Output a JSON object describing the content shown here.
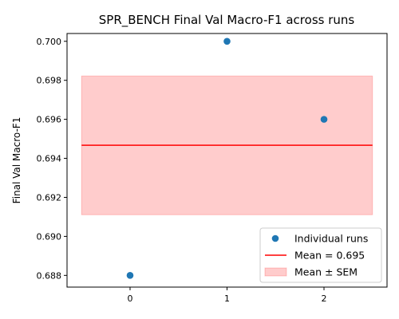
{
  "chart_data": {
    "type": "scatter",
    "title": "SPR_BENCH Final Val Macro-F1 across runs",
    "xlabel": "",
    "ylabel": "Final Val Macro-F1",
    "xlim": [
      -0.65,
      2.65
    ],
    "ylim": [
      0.6874,
      0.7004
    ],
    "xticks": [
      0,
      1,
      2
    ],
    "xtick_labels": [
      "0",
      "1",
      "2"
    ],
    "yticks": [
      0.688,
      0.69,
      0.692,
      0.694,
      0.696,
      0.698,
      0.7
    ],
    "ytick_labels": [
      "0.688",
      "0.690",
      "0.692",
      "0.694",
      "0.696",
      "0.698",
      "0.700"
    ],
    "grid": false,
    "legend_position": "bottom-right",
    "series": [
      {
        "name": "Individual runs",
        "kind": "points",
        "x": [
          0,
          1,
          2
        ],
        "y": [
          0.688,
          0.7,
          0.696
        ],
        "color": "#1f77b4"
      },
      {
        "name": "Mean = 0.695",
        "kind": "hline",
        "x_range": [
          -0.5,
          2.5
        ],
        "y": 0.69467,
        "color": "#ff0000"
      },
      {
        "name": "Mean ± SEM",
        "kind": "band",
        "x_range": [
          -0.5,
          2.5
        ],
        "y_range": [
          0.69111,
          0.69822
        ],
        "color": "#ff0000",
        "alpha": 0.2
      }
    ]
  }
}
